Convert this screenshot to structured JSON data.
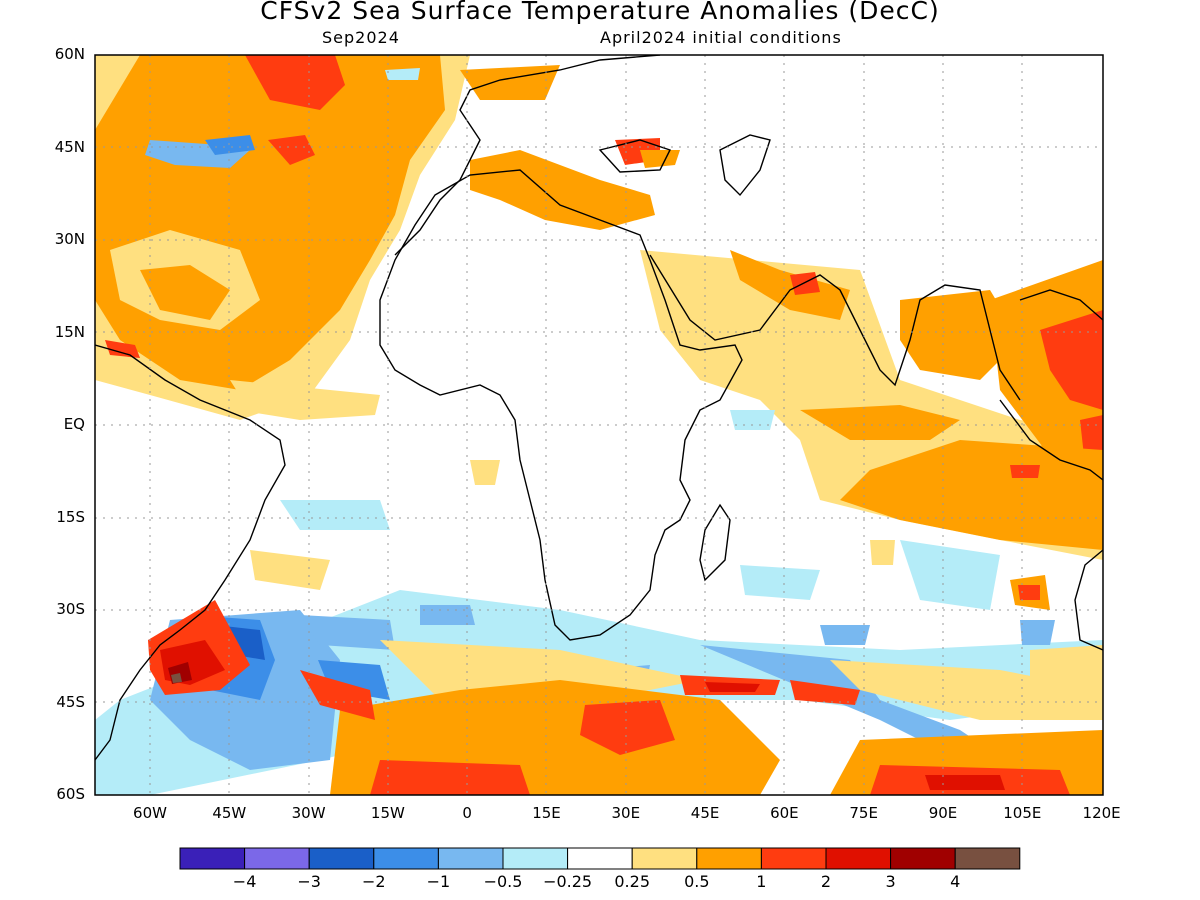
{
  "title": "CFSv2 Sea Surface Temperature Anomalies (DecC)",
  "subtitle_left": "Sep2024",
  "subtitle_right": "April2024 initial conditions",
  "lat_labels": [
    "60N",
    "45N",
    "30N",
    "15N",
    "EQ",
    "15S",
    "30S",
    "45S",
    "60S"
  ],
  "lon_labels": [
    "60W",
    "45W",
    "30W",
    "15W",
    "0",
    "15E",
    "30E",
    "45E",
    "60E",
    "75E",
    "90E",
    "105E",
    "120E"
  ],
  "colorbar": {
    "colors": [
      "#3a20b8",
      "#7b68e8",
      "#1a5fc8",
      "#3c8ee8",
      "#78b8f0",
      "#b4ecf8",
      "#ffffff",
      "#ffe080",
      "#ffa000",
      "#ff3c10",
      "#e01000",
      "#a00000",
      "#785040"
    ],
    "labels": [
      "−4",
      "−3",
      "−2",
      "−1",
      "−0.5",
      "−0.25",
      "0.25",
      "0.5",
      "1",
      "2",
      "3",
      "4"
    ]
  }
}
